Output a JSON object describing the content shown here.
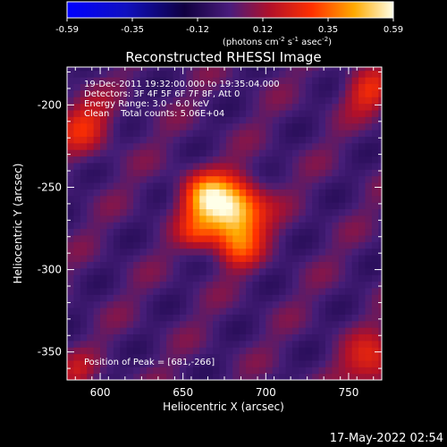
{
  "chart_data": {
    "type": "heatmap",
    "title": "Reconstructed RHESSI Image",
    "xlabel": "Heliocentric X (arcsec)",
    "ylabel": "Heliocentric Y (arcsec)",
    "xlim": [
      580,
      770
    ],
    "ylim": [
      -367,
      -177
    ],
    "x_ticks": [
      600,
      650,
      700,
      750
    ],
    "y_ticks": [
      -350,
      -300,
      -250,
      -200
    ],
    "grid": false,
    "colorbar": {
      "position": "top",
      "colormap": "blue-black-purple-red-yellow-white",
      "range": [
        -0.59,
        0.59
      ],
      "ticks": [
        "-0.59",
        "-0.35",
        "-0.12",
        "0.12",
        "0.35",
        "0.59"
      ],
      "label_main": "(photons cm",
      "label_exp1": "-2",
      "label_mid1": " s",
      "label_exp2": "-1",
      "label_mid2": " asec",
      "label_exp3": "-2",
      "label_end": ")"
    },
    "annotations": [
      "19-Dec-2011 19:32:00.000 to 19:35:04.000",
      "Detectors: 3F 4F 5F 6F 7F 8F, Att 0",
      "Energy Range: 3.0 - 6.0 keV",
      "Clean    Total counts: 5.06E+04"
    ],
    "peak_label": "Position of Peak = [681,-266]",
    "peak": {
      "x": 681,
      "y": -266,
      "value": 0.59
    },
    "sources": [
      {
        "x": 680,
        "y": -265,
        "sigma": 13,
        "amp": 1.0
      },
      {
        "x": 662,
        "y": -255,
        "sigma": 10,
        "amp": 0.55
      },
      {
        "x": 684,
        "y": -287,
        "sigma": 9,
        "amp": 0.32
      },
      {
        "x": 658,
        "y": -278,
        "sigma": 8,
        "amp": 0.28
      },
      {
        "x": 590,
        "y": -212,
        "sigma": 12,
        "amp": 0.38
      },
      {
        "x": 762,
        "y": -192,
        "sigma": 10,
        "amp": 0.38
      },
      {
        "x": 765,
        "y": -357,
        "sigma": 12,
        "amp": 0.42
      },
      {
        "x": 585,
        "y": -362,
        "sigma": 8,
        "amp": 0.22
      }
    ]
  },
  "timestamp": "17-May-2022 02:54"
}
